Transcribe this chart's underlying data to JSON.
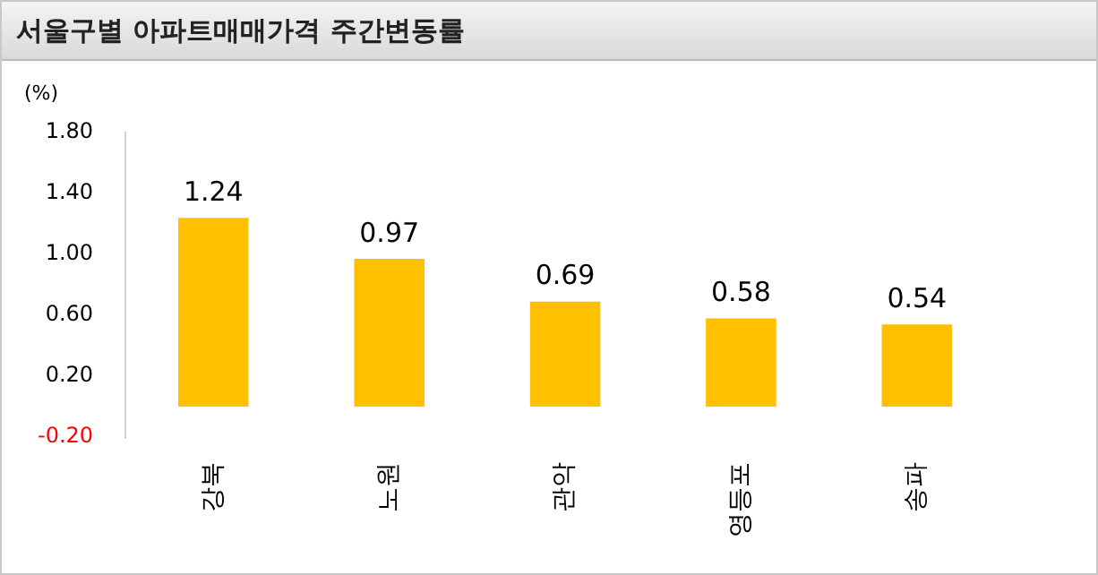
{
  "chart_data": {
    "type": "bar",
    "title": "서울구별 아파트매매가격 주간변동률",
    "ylabel": "(%)",
    "categories": [
      "강북",
      "노원",
      "관악",
      "영등포",
      "송파"
    ],
    "values": [
      1.24,
      0.97,
      0.69,
      0.58,
      0.54
    ],
    "color": "#ffc000",
    "ylim": [
      -0.2,
      1.8
    ],
    "yticks": [
      {
        "value": -0.2,
        "label": "-0.20"
      },
      {
        "value": 0.2,
        "label": "0.20"
      },
      {
        "value": 0.6,
        "label": "0.60"
      },
      {
        "value": 1.0,
        "label": "1.00"
      },
      {
        "value": 1.4,
        "label": "1.40"
      },
      {
        "value": 1.8,
        "label": "1.80"
      }
    ],
    "data_labels": true,
    "grid": false,
    "legend": false
  }
}
